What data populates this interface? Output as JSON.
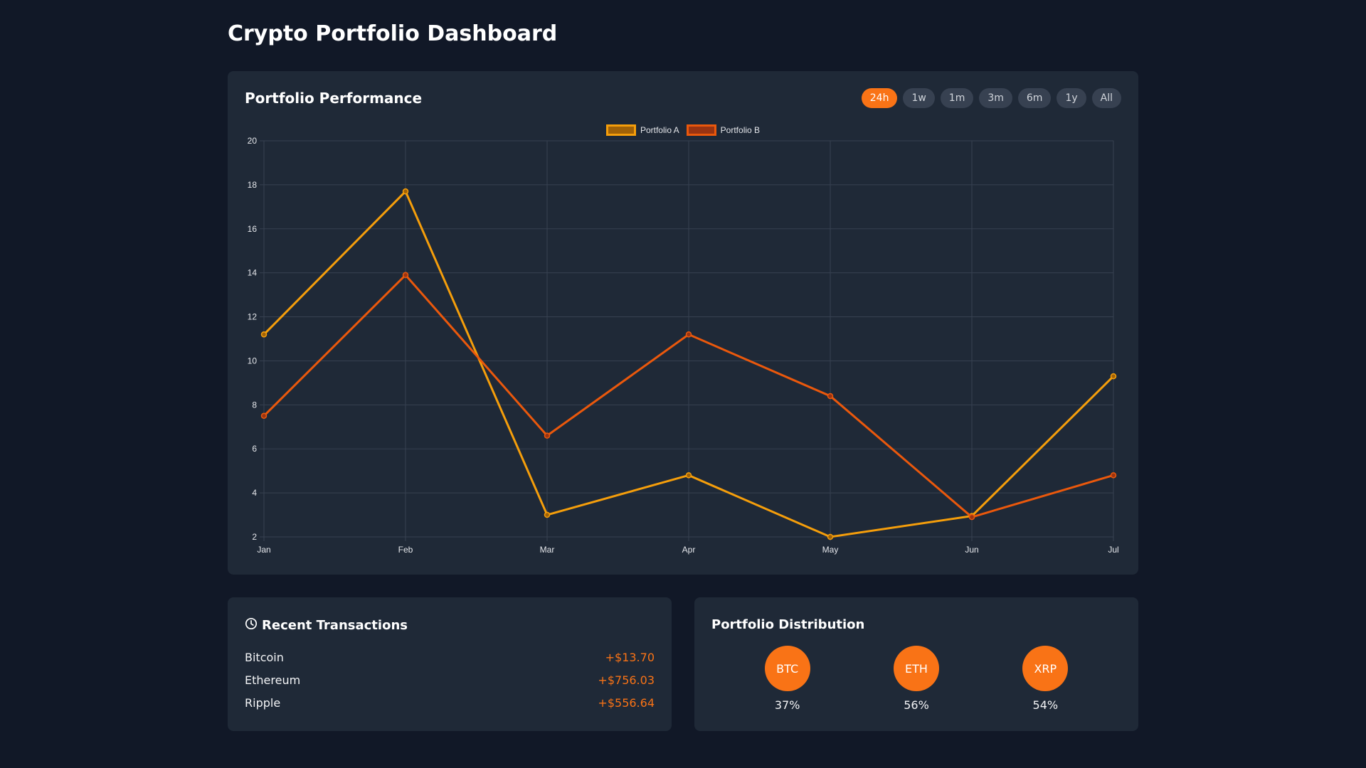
{
  "page": {
    "title": "Crypto Portfolio Dashboard"
  },
  "performance": {
    "title": "Portfolio Performance",
    "ranges": [
      {
        "label": "24h",
        "active": true
      },
      {
        "label": "1w",
        "active": false
      },
      {
        "label": "1m",
        "active": false
      },
      {
        "label": "3m",
        "active": false
      },
      {
        "label": "6m",
        "active": false
      },
      {
        "label": "1y",
        "active": false
      },
      {
        "label": "All",
        "active": false
      }
    ]
  },
  "chart_data": {
    "type": "line",
    "title": "Portfolio Performance",
    "xlabel": "",
    "ylabel": "",
    "categories": [
      "Jan",
      "Feb",
      "Mar",
      "Apr",
      "May",
      "Jun",
      "Jul"
    ],
    "ylim": [
      2,
      20
    ],
    "yticks": [
      2,
      4,
      6,
      8,
      10,
      12,
      14,
      16,
      18,
      20
    ],
    "grid": true,
    "legend_position": "top-center",
    "series": [
      {
        "name": "Portfolio A",
        "color": "#f59e0b",
        "fill": "#a16207",
        "values": [
          11.2,
          17.7,
          3.0,
          4.8,
          2.0,
          2.95,
          9.3
        ]
      },
      {
        "name": "Portfolio B",
        "color": "#ea580c",
        "fill": "#9a3412",
        "values": [
          7.5,
          13.9,
          6.6,
          11.2,
          8.4,
          2.9,
          4.8
        ]
      }
    ]
  },
  "transactions": {
    "title": "Recent Transactions",
    "icon": "clock-icon",
    "items": [
      {
        "name": "Bitcoin",
        "amount": "+$13.70"
      },
      {
        "name": "Ethereum",
        "amount": "+$756.03"
      },
      {
        "name": "Ripple",
        "amount": "+$556.64"
      }
    ]
  },
  "distribution": {
    "title": "Portfolio Distribution",
    "items": [
      {
        "symbol": "BTC",
        "percent": "37%"
      },
      {
        "symbol": "ETH",
        "percent": "56%"
      },
      {
        "symbol": "XRP",
        "percent": "54%"
      }
    ]
  },
  "colors": {
    "accent": "#f97316",
    "background": "#111827",
    "card": "#1f2937"
  }
}
